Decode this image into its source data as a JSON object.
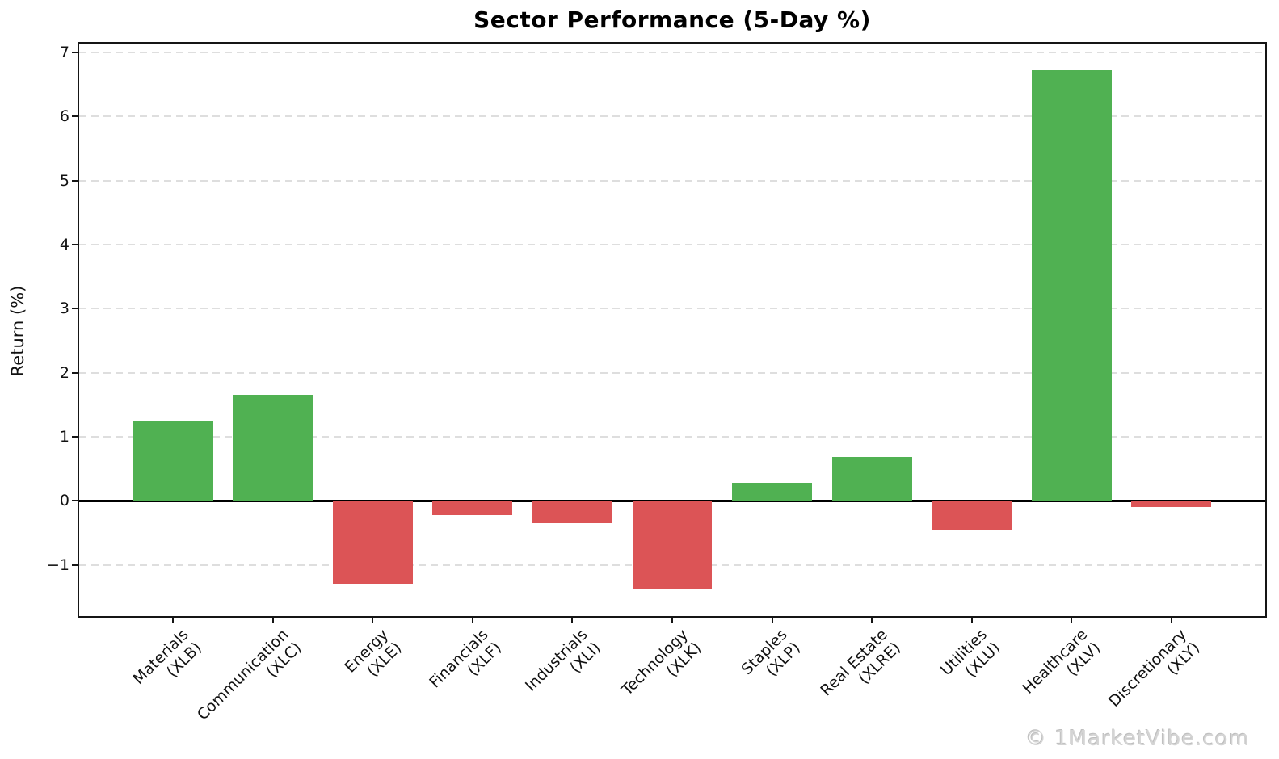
{
  "header": {
    "title": "Sector Performance (5-Day %)"
  },
  "watermark": "© 1MarketVibe.com",
  "chart_data": {
    "type": "bar",
    "title": "Sector Performance (5-Day %)",
    "xlabel": "",
    "ylabel": "Return (%)",
    "categories": [
      {
        "name": "Materials",
        "ticker": "(XLB)"
      },
      {
        "name": "Communication",
        "ticker": "(XLC)"
      },
      {
        "name": "Energy",
        "ticker": "(XLE)"
      },
      {
        "name": "Financials",
        "ticker": "(XLF)"
      },
      {
        "name": "Industrials",
        "ticker": "(XLI)"
      },
      {
        "name": "Technology",
        "ticker": "(XLK)"
      },
      {
        "name": "Staples",
        "ticker": "(XLP)"
      },
      {
        "name": "Real Estate",
        "ticker": "(XLRE)"
      },
      {
        "name": "Utilities",
        "ticker": "(XLU)"
      },
      {
        "name": "Healthcare",
        "ticker": "(XLV)"
      },
      {
        "name": "Discretionary",
        "ticker": "(XLY)"
      }
    ],
    "values": [
      1.25,
      1.65,
      -1.3,
      -0.22,
      -0.35,
      -1.39,
      0.28,
      0.68,
      -0.46,
      6.73,
      -0.1
    ],
    "yticks": [
      -1,
      0,
      1,
      2,
      3,
      4,
      5,
      6,
      7
    ],
    "ylim": [
      -1.8,
      7.14
    ],
    "xlim": [
      -0.94,
      10.94
    ],
    "bar_width": 0.8,
    "grid": "horizontal-dashed",
    "legend": "none",
    "colors": {
      "positive": "#50b152",
      "negative": "#dc5456",
      "grid": "#dedede",
      "axis": "#151515",
      "zero_line": "#000000"
    }
  }
}
